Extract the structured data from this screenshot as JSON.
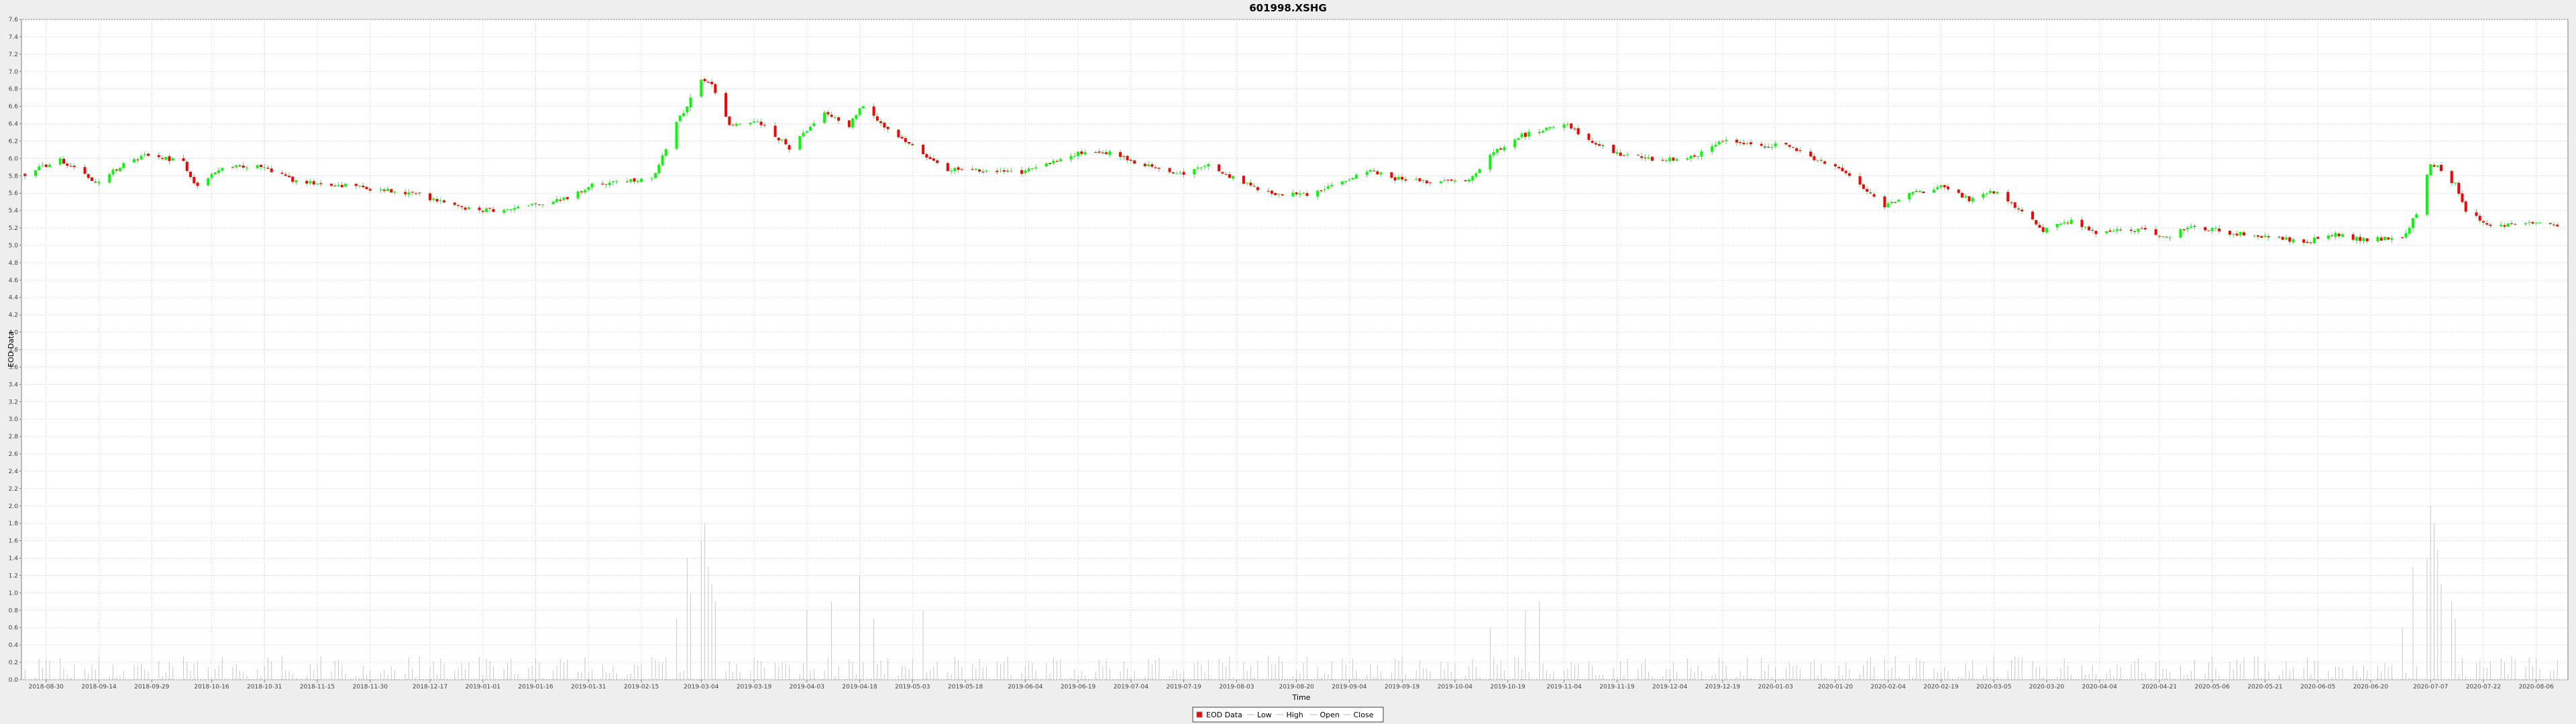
{
  "chart_data": {
    "type": "candlestick",
    "title": "601998.XSHG",
    "xlabel": "Time",
    "ylabel": "EOD Data",
    "ylim": [
      0.0,
      7.6
    ],
    "ytick_step": 0.2,
    "grid": true,
    "legend_placement": "bottom-center",
    "legend": [
      {
        "label": "EOD Data",
        "kind": "swatch"
      },
      {
        "label": "Low",
        "kind": "line"
      },
      {
        "label": "High",
        "kind": "line"
      },
      {
        "label": "Open",
        "kind": "line"
      },
      {
        "label": "Close",
        "kind": "line"
      }
    ],
    "xlim": [
      "2018-08-23",
      "2020-08-15"
    ],
    "x_tick_labels": [
      "2018-08-30",
      "2018-09-14",
      "2018-09-29",
      "2018-10-16",
      "2018-10-31",
      "2018-11-15",
      "2018-11-30",
      "2018-12-17",
      "2019-01-01",
      "2019-01-16",
      "2019-01-31",
      "2019-02-15",
      "2019-03-04",
      "2019-03-19",
      "2019-04-03",
      "2019-04-18",
      "2019-05-03",
      "2019-05-18",
      "2019-06-04",
      "2019-06-19",
      "2019-07-04",
      "2019-07-19",
      "2019-08-03",
      "2019-08-20",
      "2019-09-04",
      "2019-09-19",
      "2019-10-04",
      "2019-10-19",
      "2019-11-04",
      "2019-11-19",
      "2019-12-04",
      "2019-12-19",
      "2020-01-03",
      "2020-01-20",
      "2020-02-04",
      "2020-02-19",
      "2020-03-05",
      "2020-03-20",
      "2020-04-04",
      "2020-04-21",
      "2020-05-06",
      "2020-05-21",
      "2020-06-05",
      "2020-06-20",
      "2020-07-07",
      "2020-07-22",
      "2020-08-06"
    ],
    "price_path": [
      [
        "2018-08-24",
        5.82
      ],
      [
        "2018-09-03",
        5.98
      ],
      [
        "2018-09-10",
        5.8
      ],
      [
        "2018-09-14",
        5.72
      ],
      [
        "2018-09-21",
        5.95
      ],
      [
        "2018-09-28",
        6.05
      ],
      [
        "2018-10-08",
        5.95
      ],
      [
        "2018-10-12",
        5.66
      ],
      [
        "2018-10-19",
        5.9
      ],
      [
        "2018-10-30",
        5.92
      ],
      [
        "2018-11-08",
        5.75
      ],
      [
        "2018-11-20",
        5.7
      ],
      [
        "2018-12-03",
        5.64
      ],
      [
        "2018-12-14",
        5.58
      ],
      [
        "2018-12-25",
        5.44
      ],
      [
        "2019-01-03",
        5.4
      ],
      [
        "2019-01-15",
        5.46
      ],
      [
        "2019-01-25",
        5.55
      ],
      [
        "2019-02-01",
        5.7
      ],
      [
        "2019-02-18",
        5.76
      ],
      [
        "2019-02-25",
        6.4
      ],
      [
        "2019-03-04",
        6.9
      ],
      [
        "2019-03-07",
        6.85
      ],
      [
        "2019-03-12",
        6.4
      ],
      [
        "2019-03-20",
        6.44
      ],
      [
        "2019-03-29",
        6.12
      ],
      [
        "2019-04-08",
        6.52
      ],
      [
        "2019-04-15",
        6.38
      ],
      [
        "2019-04-19",
        6.62
      ],
      [
        "2019-04-26",
        6.32
      ],
      [
        "2019-05-06",
        6.05
      ],
      [
        "2019-05-13",
        5.88
      ],
      [
        "2019-05-24",
        5.86
      ],
      [
        "2019-06-03",
        5.84
      ],
      [
        "2019-06-12",
        5.95
      ],
      [
        "2019-06-18",
        6.05
      ],
      [
        "2019-06-28",
        6.07
      ],
      [
        "2019-07-08",
        5.92
      ],
      [
        "2019-07-19",
        5.82
      ],
      [
        "2019-07-26",
        5.92
      ],
      [
        "2019-08-05",
        5.72
      ],
      [
        "2019-08-12",
        5.6
      ],
      [
        "2019-08-23",
        5.58
      ],
      [
        "2019-09-02",
        5.75
      ],
      [
        "2019-09-10",
        5.85
      ],
      [
        "2019-09-17",
        5.77
      ],
      [
        "2019-09-27",
        5.72
      ],
      [
        "2019-10-08",
        5.75
      ],
      [
        "2019-10-14",
        6.05
      ],
      [
        "2019-10-22",
        6.25
      ],
      [
        "2019-10-31",
        6.35
      ],
      [
        "2019-11-05",
        6.4
      ],
      [
        "2019-11-11",
        6.2
      ],
      [
        "2019-11-20",
        6.05
      ],
      [
        "2019-12-02",
        5.97
      ],
      [
        "2019-12-12",
        6.05
      ],
      [
        "2019-12-19",
        6.22
      ],
      [
        "2019-12-27",
        6.15
      ],
      [
        "2020-01-06",
        6.15
      ],
      [
        "2020-01-14",
        6.0
      ],
      [
        "2020-01-23",
        5.85
      ],
      [
        "2020-02-03",
        5.45
      ],
      [
        "2020-02-10",
        5.58
      ],
      [
        "2020-02-20",
        5.68
      ],
      [
        "2020-02-27",
        5.52
      ],
      [
        "2020-03-05",
        5.62
      ],
      [
        "2020-03-12",
        5.42
      ],
      [
        "2020-03-19",
        5.18
      ],
      [
        "2020-03-27",
        5.28
      ],
      [
        "2020-04-03",
        5.15
      ],
      [
        "2020-04-15",
        5.18
      ],
      [
        "2020-04-24",
        5.1
      ],
      [
        "2020-04-30",
        5.23
      ],
      [
        "2020-05-11",
        5.14
      ],
      [
        "2020-05-22",
        5.1
      ],
      [
        "2020-06-01",
        5.04
      ],
      [
        "2020-06-10",
        5.12
      ],
      [
        "2020-06-19",
        5.06
      ],
      [
        "2020-06-29",
        5.1
      ],
      [
        "2020-07-03",
        5.35
      ],
      [
        "2020-07-07",
        5.95
      ],
      [
        "2020-07-09",
        5.9
      ],
      [
        "2020-07-14",
        5.7
      ],
      [
        "2020-07-17",
        5.4
      ],
      [
        "2020-07-24",
        5.22
      ],
      [
        "2020-07-31",
        5.25
      ],
      [
        "2020-08-06",
        5.28
      ],
      [
        "2020-08-12",
        5.24
      ]
    ],
    "volume_spikes": [
      [
        "2019-02-25",
        0.7
      ],
      [
        "2019-02-28",
        1.4
      ],
      [
        "2019-03-01",
        1.0
      ],
      [
        "2019-03-04",
        1.6
      ],
      [
        "2019-03-05",
        1.8
      ],
      [
        "2019-03-06",
        1.3
      ],
      [
        "2019-03-07",
        1.1
      ],
      [
        "2019-03-08",
        0.9
      ],
      [
        "2019-04-03",
        0.8
      ],
      [
        "2019-04-10",
        0.9
      ],
      [
        "2019-04-18",
        1.2
      ],
      [
        "2019-04-22",
        0.7
      ],
      [
        "2019-05-06",
        0.8
      ],
      [
        "2019-10-14",
        0.6
      ],
      [
        "2019-10-24",
        0.8
      ],
      [
        "2019-10-28",
        0.9
      ],
      [
        "2020-06-29",
        0.6
      ],
      [
        "2020-07-02",
        1.3
      ],
      [
        "2020-07-06",
        1.4
      ],
      [
        "2020-07-07",
        2.0
      ],
      [
        "2020-07-08",
        1.8
      ],
      [
        "2020-07-09",
        1.5
      ],
      [
        "2020-07-10",
        1.1
      ],
      [
        "2020-07-13",
        0.9
      ],
      [
        "2020-07-14",
        0.7
      ]
    ],
    "colors": {
      "up": "#00ff00",
      "down": "#ff0000",
      "wick": "#66cc66",
      "volume": "#c8c8c8",
      "plot_bg": "#ffffff",
      "grid": "#dddddd",
      "frame_bg": "#eeeeee"
    }
  }
}
